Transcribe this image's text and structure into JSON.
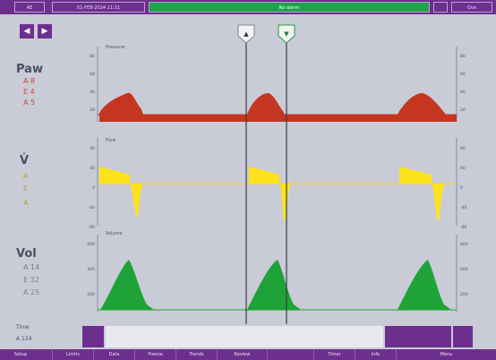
{
  "topbar": {
    "cell1": "AE",
    "cell2": "01-FEB-2024 11:21",
    "status": "No alarm",
    "cell4": "",
    "cell5": "Ove"
  },
  "left_panel": {
    "paw": {
      "title": "Paw",
      "a": "A 8",
      "b": "E 4",
      "c": "A 5"
    },
    "flow": {
      "title": "V̇",
      "a": "A",
      "b": "E",
      "c": "A"
    },
    "vol": {
      "title": "Vol",
      "a": "A 14",
      "b": "E 32",
      "c": "A 25"
    },
    "tau": {
      "title": "Time",
      "value": "A 124"
    }
  },
  "plots": {
    "pressure": {
      "label": "Pressure",
      "left_ticks": [
        "80",
        "60",
        "40",
        "20",
        "0"
      ],
      "right_ticks": [
        "80",
        "60",
        "40",
        "20",
        "0"
      ]
    },
    "flow": {
      "label": "Flow",
      "left_ticks": [
        "80",
        "40",
        "0",
        "-40",
        "-80"
      ],
      "right_ticks": [
        "80",
        "40",
        "0",
        "-40",
        "-80"
      ]
    },
    "volume": {
      "label": "Volume",
      "left_ticks": [
        "600",
        "400",
        "200",
        "0"
      ],
      "right_ticks": [
        "600",
        "400",
        "200",
        "0"
      ]
    }
  },
  "colors": {
    "pressure": "#c4361f",
    "flow": "#ffe31a",
    "flow_baseline": "#e6d26b",
    "volume": "#1fa338",
    "chrome": "#6d2f8e",
    "plot_bg": "#c9cbd6"
  },
  "bottombar": [
    "Setup",
    "Limits",
    "Data",
    "Freeze",
    "Trends",
    "Review",
    "",
    "Timer",
    "Info",
    "Menu"
  ]
}
